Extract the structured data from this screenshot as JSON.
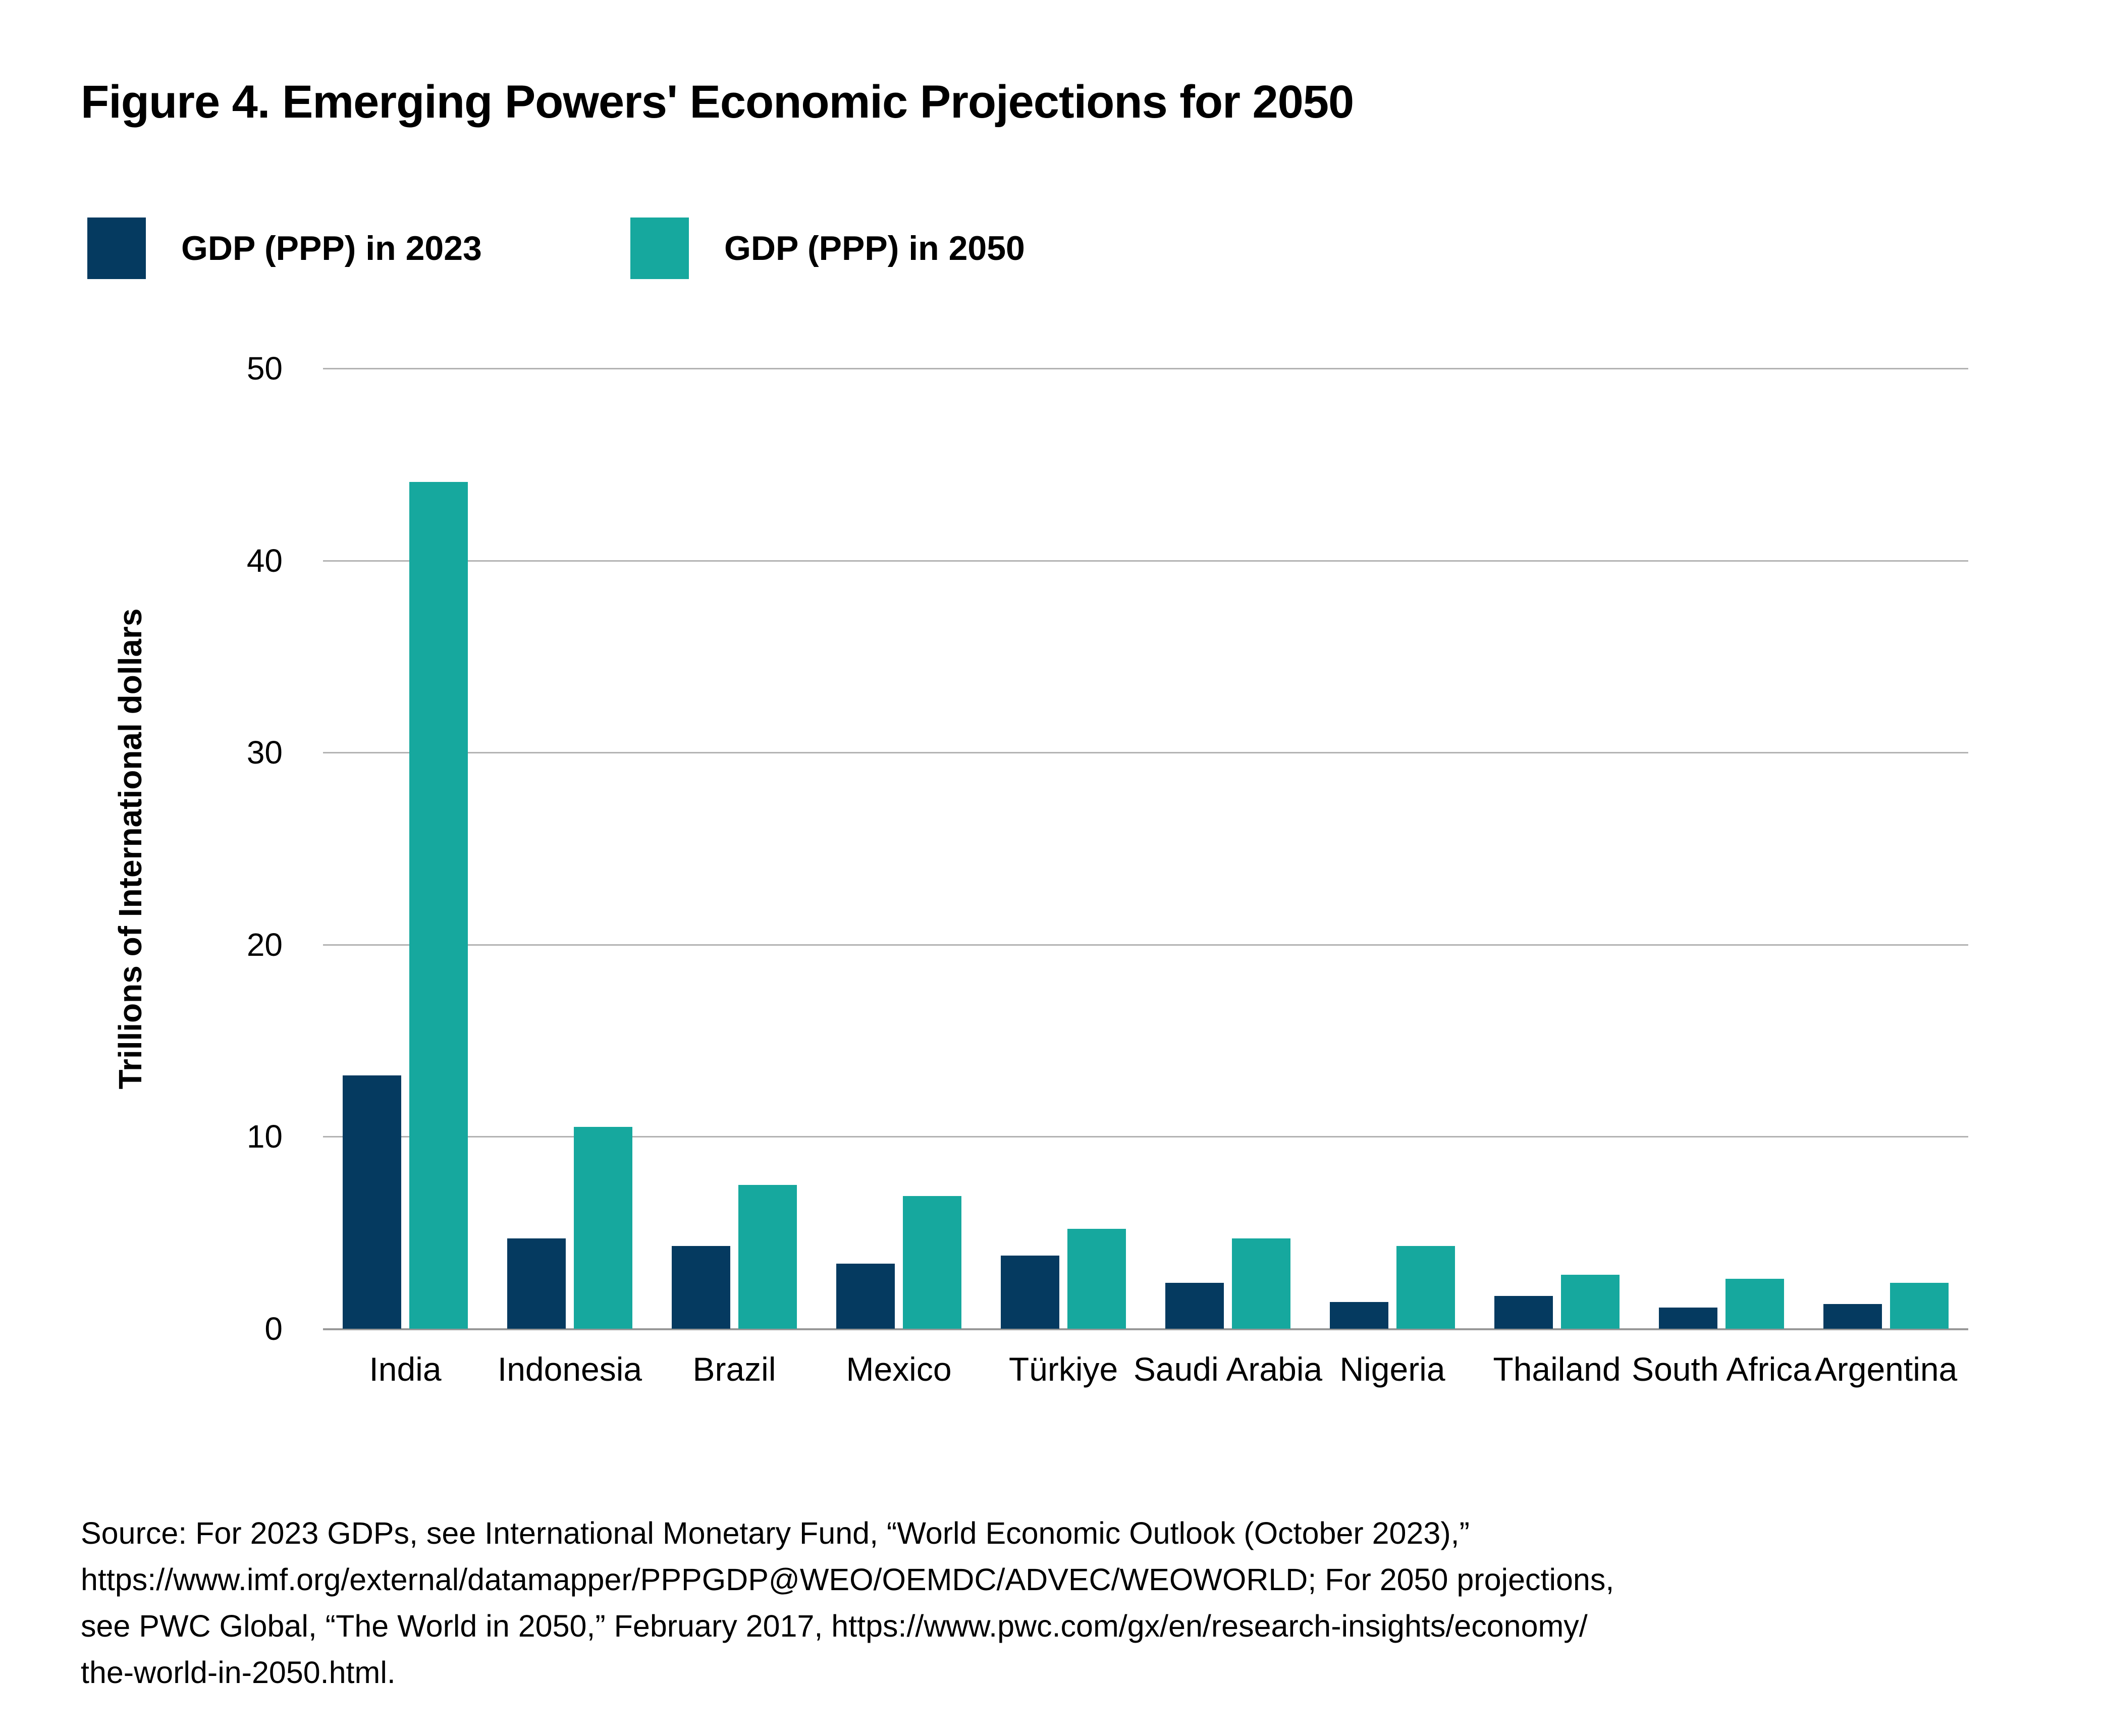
{
  "figure": {
    "title": "Figure 4. Emerging Powers' Economic Projections for 2050"
  },
  "legend": {
    "items": [
      {
        "key": "2023",
        "label": "GDP (PPP) in 2023",
        "color": "#053A60"
      },
      {
        "key": "2050",
        "label": "GDP (PPP) in 2050",
        "color": "#16A89E"
      }
    ]
  },
  "chart_data": {
    "type": "bar",
    "title": "Figure 4. Emerging Powers' Economic Projections for 2050",
    "categories": [
      "India",
      "Indonesia",
      "Brazil",
      "Mexico",
      "Türkiye",
      "Saudi Arabia",
      "Nigeria",
      "Thailand",
      "South Africa",
      "Argentina"
    ],
    "series": [
      {
        "name": "GDP (PPP) in 2023",
        "key": "2023",
        "color": "#053A60",
        "values": [
          13.2,
          4.7,
          4.3,
          3.4,
          3.8,
          2.4,
          1.4,
          1.7,
          1.1,
          1.3
        ]
      },
      {
        "name": "GDP (PPP) in 2050",
        "key": "2050",
        "color": "#16A89E",
        "values": [
          44.1,
          10.5,
          7.5,
          6.9,
          5.2,
          4.7,
          4.3,
          2.8,
          2.6,
          2.4
        ]
      }
    ],
    "xlabel": "",
    "ylabel": "Trillions of International dollars",
    "ylim": [
      0,
      50
    ],
    "yticks": [
      0,
      10,
      20,
      30,
      40,
      50
    ],
    "grid": true,
    "legend_position": "top-left",
    "gridline_color": "#B3B3B3",
    "baseline_color": "#999999",
    "background_color": "#FFFFFF"
  },
  "source": {
    "lines": [
      "Source: For 2023 GDPs, see International Monetary Fund, “World Economic Outlook (October 2023),”",
      "https://www.imf.org/external/datamapper/PPPGDP@WEO/OEMDC/ADVEC/WEOWORLD; For 2050 projections,",
      "see PWC Global, “The World in 2050,” February 2017, https://www.pwc.com/gx/en/research-insights/economy/",
      "the-world-in-2050.html."
    ]
  }
}
